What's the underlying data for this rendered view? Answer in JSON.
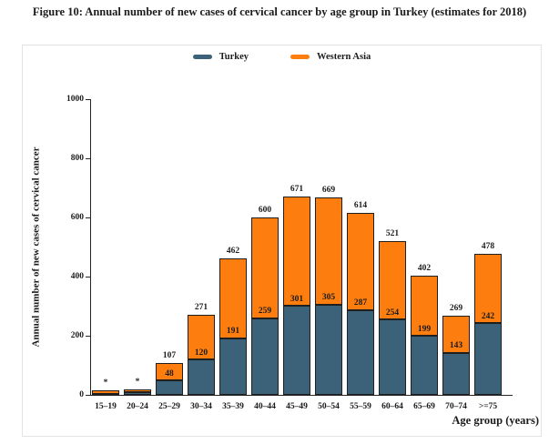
{
  "figure": {
    "title": "Figure 10: Annual number of new cases of cervical cancer by age group in Turkey (estimates for 2018)"
  },
  "legend": {
    "position": "top-center",
    "items": [
      {
        "label": "Turkey",
        "color": "#3b6278"
      },
      {
        "label": "Western Asia",
        "color": "#fd7e0e"
      }
    ]
  },
  "chart_data": {
    "type": "bar",
    "stacked": true,
    "title": "",
    "xlabel": "Age group (years)",
    "ylabel": "Annual number of new cases of cervical cancer",
    "ylim": [
      0,
      1000
    ],
    "yticks": [
      0,
      200,
      400,
      600,
      800,
      1000
    ],
    "grid": false,
    "categories": [
      "15–19",
      "20–24",
      "25–29",
      "30–34",
      "35–39",
      "40–44",
      "45–49",
      "50–54",
      "55–59",
      "60–64",
      "65–69",
      "70–74",
      ">=75"
    ],
    "series": [
      {
        "name": "Turkey",
        "color": "#3b6278",
        "values": [
          4,
          8,
          48,
          120,
          191,
          259,
          301,
          305,
          287,
          254,
          199,
          143,
          242
        ],
        "labels": [
          "",
          "",
          "48",
          "120",
          "191",
          "259",
          "301",
          "305",
          "287",
          "254",
          "199",
          "143",
          "242"
        ]
      },
      {
        "name": "Western Asia",
        "color": "#fd7e0e",
        "values": [
          11,
          12,
          59,
          151,
          271,
          341,
          370,
          364,
          327,
          267,
          203,
          126,
          236
        ],
        "labels": [
          "",
          "",
          "",
          "",
          "",
          "",
          "",
          "",
          "",
          "",
          "",
          "",
          ""
        ]
      }
    ],
    "totals_labels": [
      "*",
      "*",
      "107",
      "271",
      "462",
      "600",
      "671",
      "669",
      "614",
      "521",
      "402",
      "269",
      "478"
    ]
  }
}
